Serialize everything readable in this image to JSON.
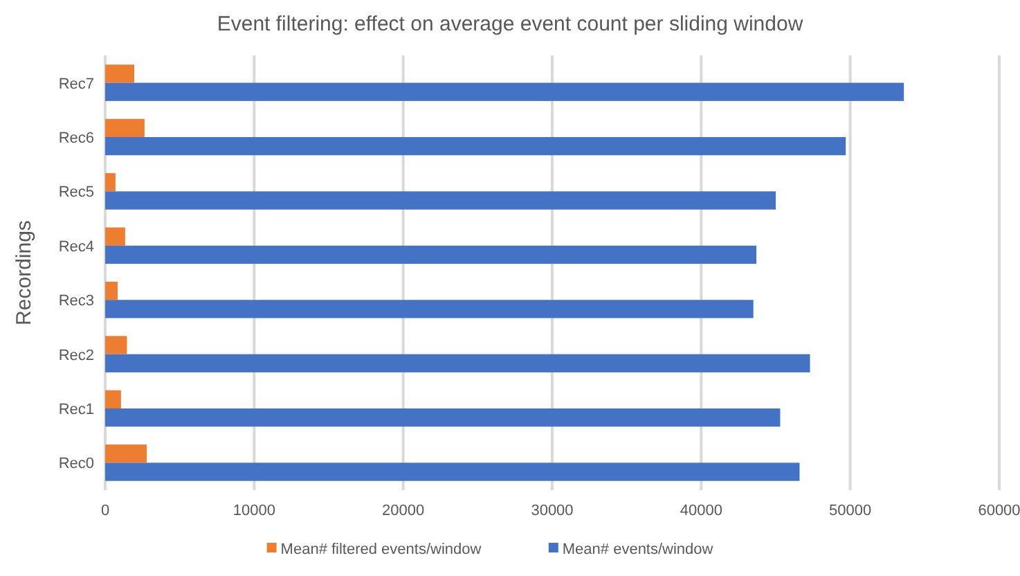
{
  "chart_data": {
    "type": "bar",
    "orientation": "horizontal",
    "title": "Event filtering: effect on average event count per sliding window",
    "ylabel": "Recordings",
    "categories": [
      "Rec7",
      "Rec6",
      "Rec5",
      "Rec4",
      "Rec3",
      "Rec2",
      "Rec1",
      "Rec0"
    ],
    "series": [
      {
        "name": "Mean# filtered events/window",
        "color": "#ed7d31",
        "values": [
          1950,
          2640,
          690,
          1340,
          840,
          1460,
          1060,
          2790
        ]
      },
      {
        "name": "Mean# events/window",
        "color": "#4472c4",
        "values": [
          53600,
          49700,
          45000,
          43700,
          43500,
          47300,
          45300,
          46600
        ]
      }
    ],
    "xlim": [
      0,
      60000
    ],
    "xticks": [
      0,
      10000,
      20000,
      30000,
      40000,
      50000,
      60000
    ],
    "grid": "x",
    "legend": "bottom"
  }
}
